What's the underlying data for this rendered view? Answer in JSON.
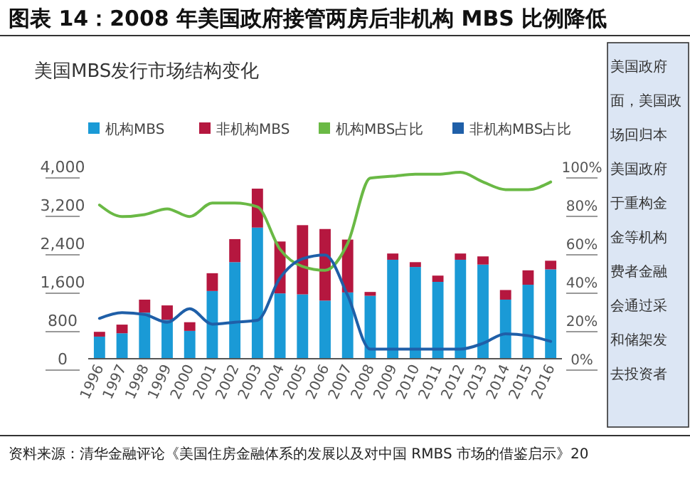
{
  "chart_data": {
    "type": "bar",
    "title": "图表 14：2008 年美国政府接管两房后非机构 MBS 比例降低",
    "subtitle": "美国MBS发行市场结构变化",
    "categories": [
      "1996",
      "1997",
      "1998",
      "1999",
      "2000",
      "2001",
      "2002",
      "2003",
      "2004",
      "2005",
      "2006",
      "2007",
      "2008",
      "2009",
      "2010",
      "2011",
      "2012",
      "2013",
      "2014",
      "2015",
      "2016"
    ],
    "stacked": true,
    "series": [
      {
        "name": "机构MBS",
        "color": "#1a9ad6",
        "values": [
          460,
          530,
          960,
          810,
          580,
          1410,
          2010,
          2730,
          1360,
          1340,
          1210,
          1380,
          1310,
          2060,
          1910,
          1600,
          2060,
          1960,
          1230,
          1540,
          1860
        ]
      },
      {
        "name": "非机构MBS",
        "color": "#b5173f",
        "values": [
          100,
          180,
          270,
          300,
          180,
          370,
          480,
          810,
          1080,
          1440,
          1490,
          1100,
          80,
          130,
          100,
          130,
          130,
          170,
          200,
          300,
          180
        ]
      },
      {
        "name": "机构MBS占比",
        "type": "line",
        "axis": "y2",
        "color": "#6ab945",
        "values": [
          80,
          74,
          75,
          78,
          74,
          81,
          81,
          79,
          57,
          48,
          46,
          60,
          94,
          95,
          96,
          96,
          97,
          92,
          88,
          88,
          92
        ]
      },
      {
        "name": "非机构MBS占比",
        "type": "line",
        "axis": "y2",
        "color": "#1f5fa8",
        "values": [
          21,
          24,
          23,
          19,
          26,
          18,
          19,
          20,
          42,
          52,
          54,
          33,
          5,
          5,
          5,
          5,
          5,
          8,
          13,
          12,
          9
        ]
      }
    ],
    "ylim": [
      0,
      4000
    ],
    "yticks": [
      0,
      800,
      {
        "value": 1600,
        "label": "1,600"
      },
      {
        "value": 2400,
        "label": "2,400"
      },
      {
        "value": 3200,
        "label": "3,200"
      },
      {
        "value": 4000,
        "label": "4,000"
      }
    ],
    "y2lim": [
      0,
      100
    ],
    "y2ticks": [
      {
        "value": 0,
        "label": "0%"
      },
      {
        "value": 20,
        "label": "20%"
      },
      {
        "value": 40,
        "label": "40%"
      },
      {
        "value": 60,
        "label": "60%"
      },
      {
        "value": 80,
        "label": "80%"
      },
      {
        "value": 100,
        "label": "100%"
      }
    ],
    "legend": "top left",
    "annotations": [
      "资料来源：清华金融评论《美国住房金融体系的发展以及对中国 RMBS 市场的借鉴启示》20",
      "美国政府",
      "面，美国政",
      "场回归本",
      "美国政府",
      "于重构金",
      "金等机构",
      "费者金融",
      "会通过采",
      "和储架发",
      "去投资者"
    ]
  }
}
